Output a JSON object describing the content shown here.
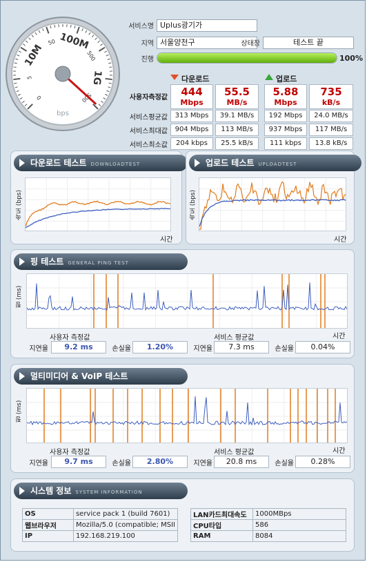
{
  "service": {
    "name_label": "서비스명",
    "name_value": "Uplus광기가",
    "region_label": "지역",
    "region_value": "서울양천구",
    "status_label": "상태창",
    "status_value": "테스트 끝",
    "progress_label": "진행",
    "progress_percent": 100,
    "progress_text": "100%"
  },
  "gauge": {
    "ticks": [
      "0",
      "5",
      "10M",
      "50",
      "100M",
      "500",
      "1G",
      "500"
    ],
    "unit": "bps",
    "needle_fraction": 0.99
  },
  "speed": {
    "download_header": "다운로드",
    "upload_header": "업로드",
    "user_measure_label": "사용자측정값",
    "user": {
      "dl_mbps_value": "444",
      "dl_mbps_unit": "Mbps",
      "dl_mbs_value": "55.5",
      "dl_mbs_unit": "MB/s",
      "ul_mbps_value": "5.88",
      "ul_mbps_unit": "Mbps",
      "ul_kbs_value": "735",
      "ul_kbs_unit": "kB/s"
    },
    "rows": [
      {
        "label": "서비스평균값",
        "c1": "313 Mbps",
        "c2": "39.1 MB/s",
        "c3": "192 Mbps",
        "c4": "24.0 MB/s"
      },
      {
        "label": "서비스최대값",
        "c1": "904 Mbps",
        "c2": "113 MB/s",
        "c3": "937 Mbps",
        "c4": "117 MB/s"
      },
      {
        "label": "서비스최소값",
        "c1": "204 kbps",
        "c2": "25.5 kB/s",
        "c3": "111 kbps",
        "c4": "13.8 kB/s"
      }
    ]
  },
  "download_test": {
    "title": "다운로드 테스트",
    "subtitle": "DOWNLOADTEST",
    "ylabel": "속도 (bps)",
    "xlabel": "시간"
  },
  "upload_test": {
    "title": "업로드 테스트",
    "subtitle": "UPLOADTEST",
    "ylabel": "속도 (bps)",
    "xlabel": "시간"
  },
  "ping_test": {
    "title": "핑 테스트",
    "subtitle": "GENERAL PING TEST",
    "ylabel": "핑 (ms)",
    "xlabel": "시간",
    "user_label": "사용자 측정값",
    "service_label": "서비스 평균값",
    "latency_label": "지연율",
    "loss_label": "손실율",
    "user_latency": "9.2 ms",
    "user_loss": "1.20%",
    "svc_latency": "7.3 ms",
    "svc_loss": "0.04%"
  },
  "voip_test": {
    "title": "멀티미디어 & VoIP 테스트",
    "subtitle": "",
    "ylabel": "핑 (ms)",
    "xlabel": "시간",
    "user_label": "사용자 측정값",
    "service_label": "서비스 평균값",
    "latency_label": "지연율",
    "loss_label": "손실율",
    "user_latency": "9.7 ms",
    "user_loss": "2.80%",
    "svc_latency": "20.8 ms",
    "svc_loss": "0.28%"
  },
  "system": {
    "title": "시스템 정보",
    "subtitle": "SYSTEM INFORMATION",
    "left": [
      {
        "k": "OS",
        "v": "service pack 1 (build 7601)"
      },
      {
        "k": "웹브라우저",
        "v": "Mozilla/5.0 (compatible; MSII"
      },
      {
        "k": "IP",
        "v": "192.168.219.100"
      }
    ],
    "right": [
      {
        "k": "LAN카드최대속도",
        "v": "1000MBps"
      },
      {
        "k": "CPU타입",
        "v": "586"
      },
      {
        "k": "RAM",
        "v": "8084"
      }
    ]
  },
  "colors": {
    "orange": "#e07b1c",
    "blue": "#3d5fbf",
    "progress": "#7fcf1e"
  }
}
